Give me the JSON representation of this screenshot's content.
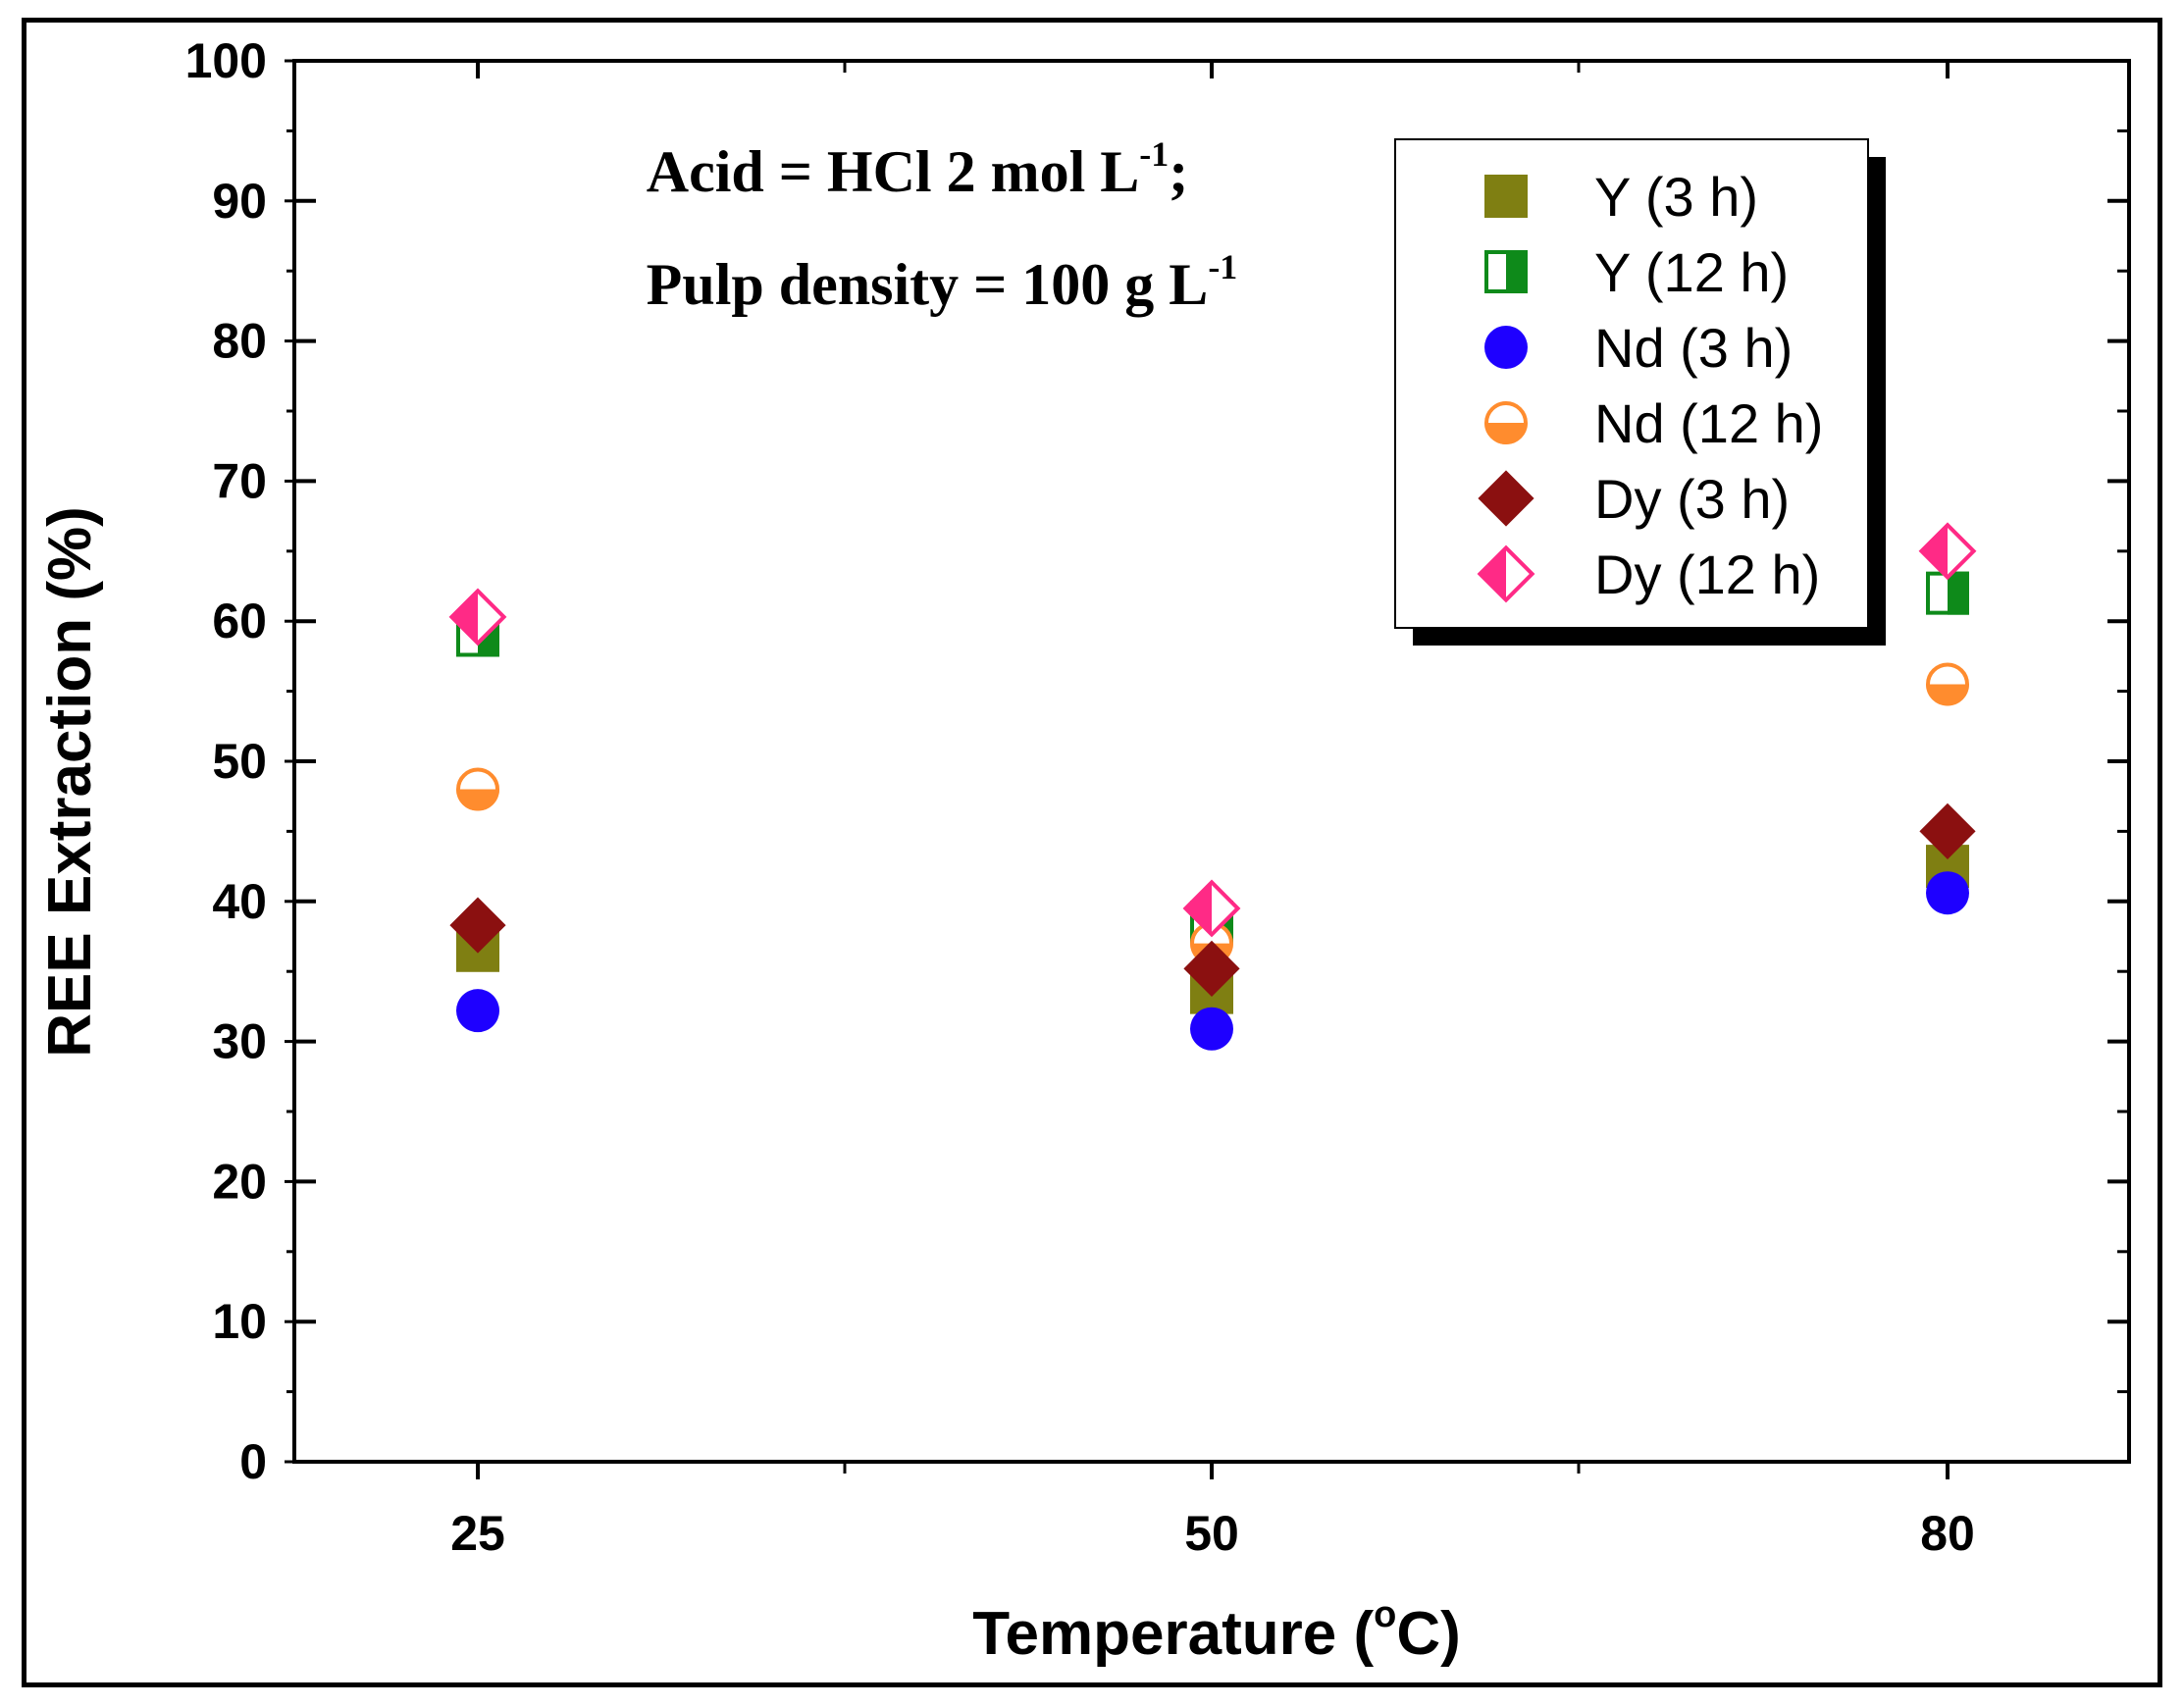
{
  "chart_data": {
    "type": "scatter",
    "title": "",
    "xlabel": "Temperature (°C)",
    "xlabel_parts": {
      "main": "Temperature (",
      "degree": "o",
      "unit": "C)"
    },
    "ylabel": "REE Extraction (%)",
    "categories": [
      "25",
      "50",
      "80"
    ],
    "ylim": [
      0,
      100
    ],
    "yticks": [
      "0",
      "10",
      "20",
      "30",
      "40",
      "50",
      "60",
      "70",
      "80",
      "90",
      "100"
    ],
    "annotation": {
      "line1": {
        "text": "Acid = HCl 2 mol L",
        "sup": "-1",
        "tail": ";"
      },
      "line2": {
        "text": "Pulp density = 100 g L",
        "sup": "-1",
        "tail": ""
      }
    },
    "legend_position": "top-right",
    "series": [
      {
        "name": "Y (3 h)",
        "marker": "square-filled",
        "color": "#7f7f12",
        "values": [
          36.5,
          33.5,
          42.5
        ]
      },
      {
        "name": "Y (12 h)",
        "marker": "square-half",
        "color": "#0e8a1a",
        "values": [
          59.0,
          38.5,
          62.0
        ]
      },
      {
        "name": "Nd (3 h)",
        "marker": "circle-filled",
        "color": "#1e00ff",
        "values": [
          32.2,
          30.9,
          40.6
        ]
      },
      {
        "name": "Nd (12 h)",
        "marker": "circle-half",
        "color": "#ff8c2e",
        "values": [
          48.0,
          37.0,
          55.5
        ]
      },
      {
        "name": "Dy (3 h)",
        "marker": "diamond-filled",
        "color": "#8b1010",
        "values": [
          38.3,
          35.2,
          45.0
        ]
      },
      {
        "name": "Dy (12 h)",
        "marker": "diamond-half",
        "color": "#ff2a86",
        "values": [
          60.3,
          39.5,
          65.0
        ]
      }
    ]
  }
}
